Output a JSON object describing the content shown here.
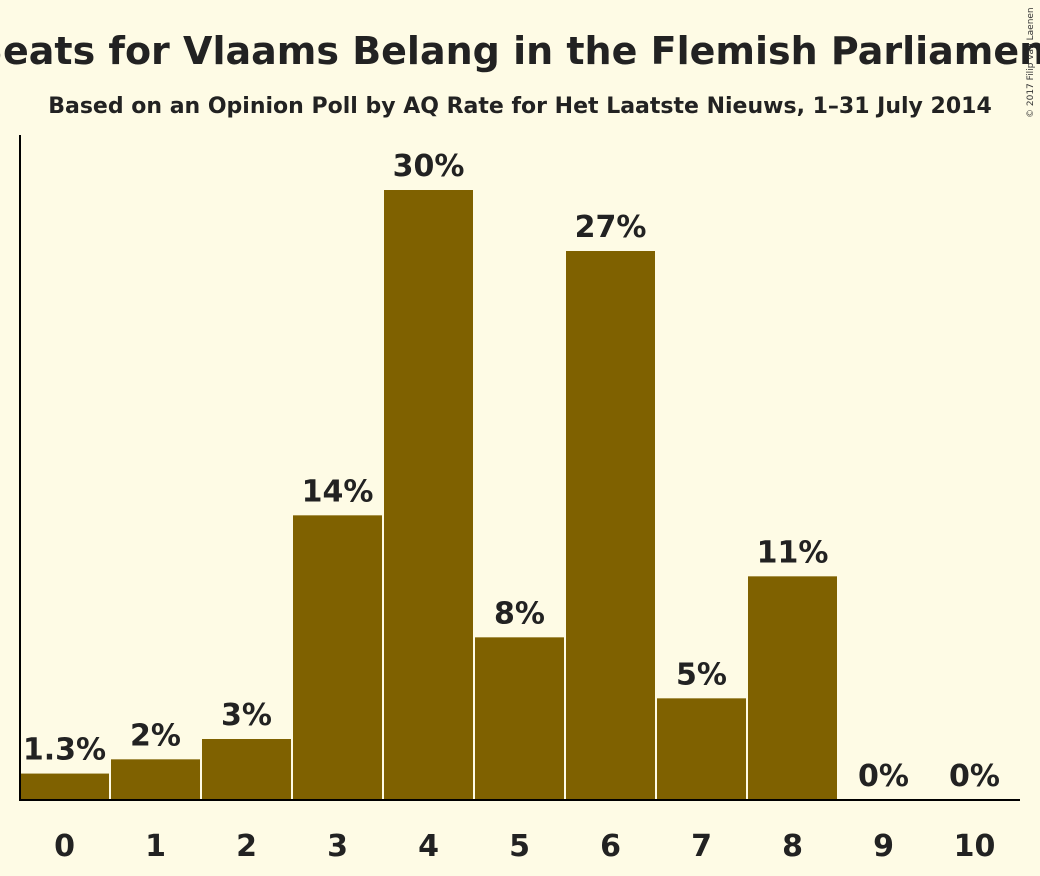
{
  "chart_data": {
    "type": "bar",
    "title": "Seats for Vlaams Belang in the Flemish Parliament",
    "subtitle": "Based on an Opinion Poll by AQ Rate for Het Laatste Nieuws, 1–31 July 2014",
    "copyright": "© 2017 Filip van Laenen",
    "categories": [
      "0",
      "1",
      "2",
      "3",
      "4",
      "5",
      "6",
      "7",
      "8",
      "9",
      "10"
    ],
    "values": [
      1.3,
      2,
      3,
      14,
      30,
      8,
      27,
      5,
      11,
      0,
      0
    ],
    "value_labels": [
      "1.3%",
      "2%",
      "3%",
      "14%",
      "30%",
      "8%",
      "27%",
      "5%",
      "11%",
      "0%",
      "0%"
    ],
    "ylim": [
      0,
      32
    ],
    "bar_color": "#7f6100",
    "grid": false
  }
}
